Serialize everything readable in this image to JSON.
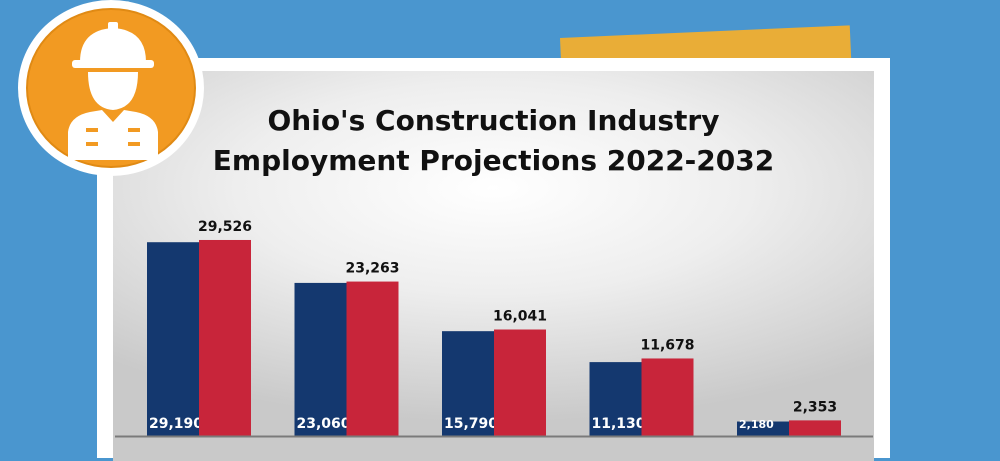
{
  "header": {
    "title_line1": "Ohio's Construction Industry",
    "title_line2": "Employment Projections 2022-2032"
  },
  "badge": {
    "icon": "construction-worker-icon",
    "color": "#f29a22"
  },
  "colors": {
    "background": "#4a96cf",
    "accent_tab": "#e9ad37",
    "series_2022": "#14386f",
    "series_2032": "#c8253a"
  },
  "chart_data": {
    "type": "bar",
    "title": "Ohio's Construction Industry Employment Projections 2022-2032",
    "xlabel": "",
    "ylabel": "",
    "ylim": [
      0,
      36000
    ],
    "grid": false,
    "categories": [
      "",
      "",
      "",
      "",
      ""
    ],
    "series": [
      {
        "values": [
          29190,
          23060,
          15790,
          11130,
          2180
        ],
        "labels": [
          "29,190",
          "23,060",
          "15,790",
          "11,130",
          "2,180"
        ],
        "color": "#14386f",
        "label_position": "inside-bottom"
      },
      {
        "values": [
          29526,
          23263,
          16041,
          11678,
          2353
        ],
        "labels": [
          "29,526",
          "23,263",
          "16,041",
          "11,678",
          "2,353"
        ],
        "color": "#c8253a",
        "label_position": "above"
      }
    ]
  }
}
